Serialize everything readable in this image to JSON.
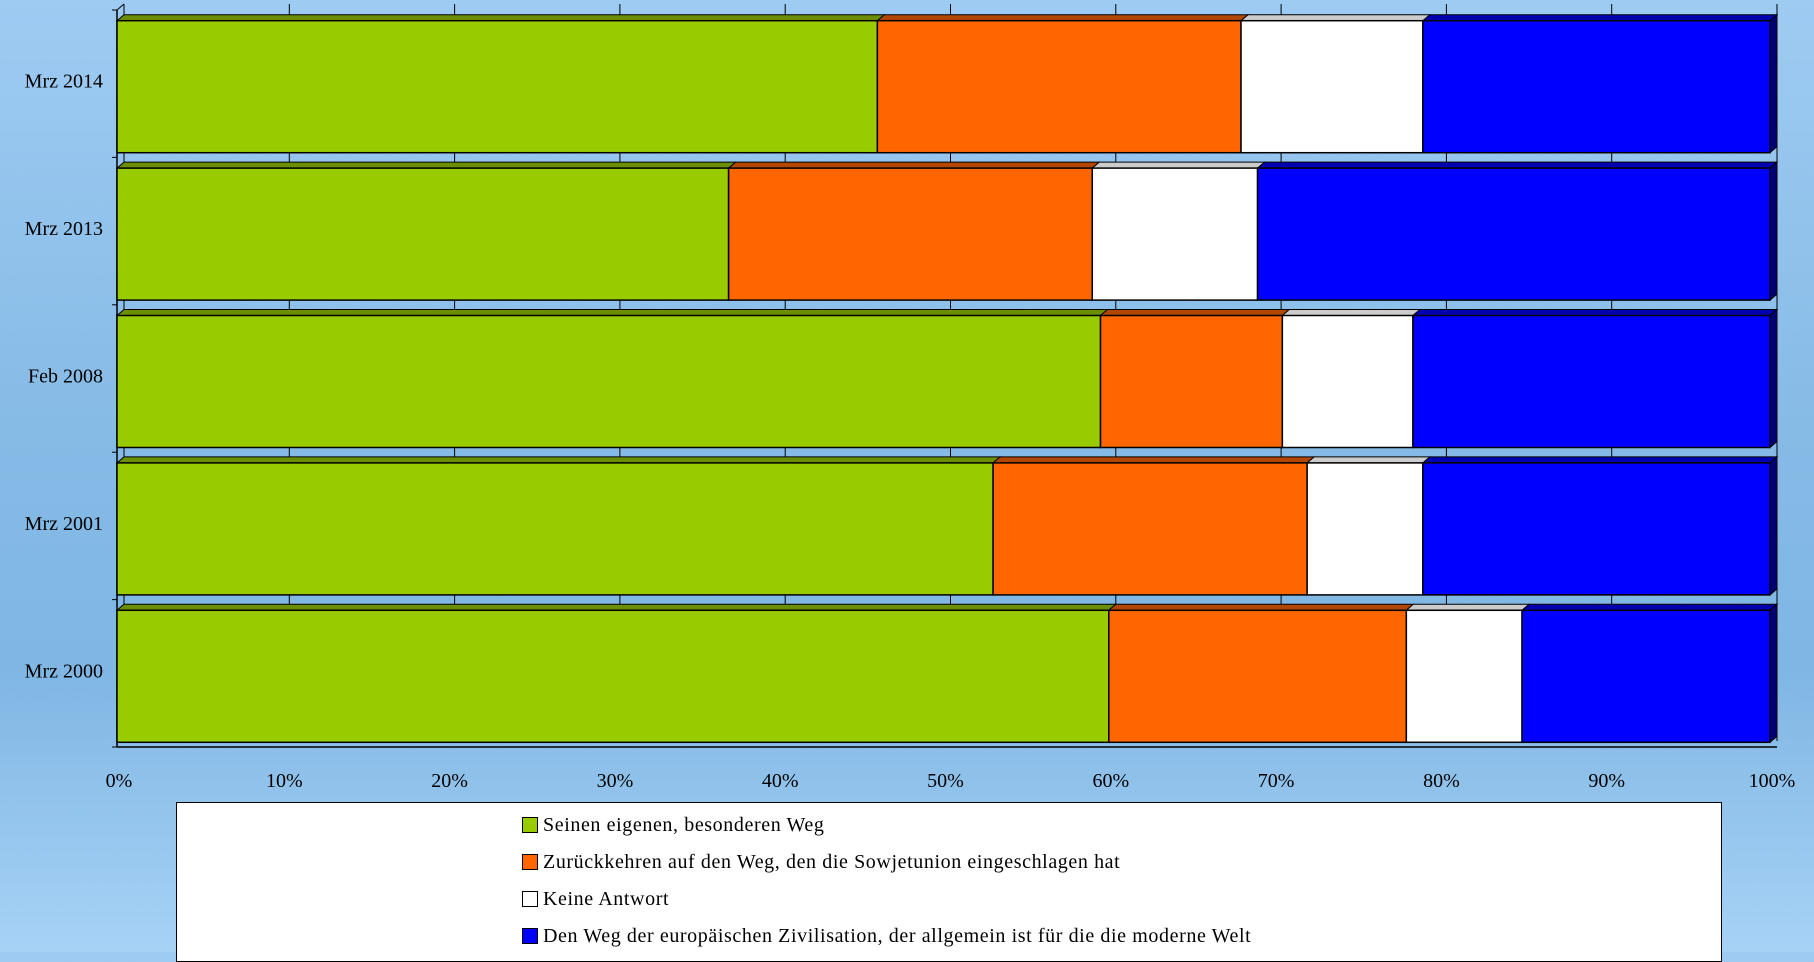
{
  "chart_data": {
    "type": "bar",
    "orientation": "horizontal",
    "stacked": "percent",
    "style": "3d",
    "categories": [
      "Mrz 2014",
      "Mrz 2013",
      "Feb 2008",
      "Mrz 2001",
      "Mrz 2000"
    ],
    "series": [
      {
        "name": "Seinen eigenen, besonderen Weg",
        "color": "#99cc00",
        "values": [
          46,
          37,
          59.5,
          53,
          60
        ]
      },
      {
        "name": "Zurückkehren auf den Weg, den die Sowjetunion eingeschlagen hat",
        "color": "#ff6600",
        "values": [
          22,
          22,
          11,
          19,
          18
        ]
      },
      {
        "name": "Keine Antwort",
        "color": "#ffffff",
        "values": [
          11,
          10,
          7.9,
          7,
          7
        ]
      },
      {
        "name": "Den Weg der europäischen Zivilisation, der allgemein ist für die die moderne Welt",
        "color": "#0000ff",
        "values": [
          21,
          31,
          21.6,
          21,
          15
        ]
      }
    ],
    "xticks": [
      "0%",
      "10%",
      "20%",
      "30%",
      "40%",
      "50%",
      "60%",
      "70%",
      "80%",
      "90%",
      "100%"
    ],
    "xlim": [
      0,
      100
    ],
    "grid": true,
    "legend_position": "bottom"
  }
}
